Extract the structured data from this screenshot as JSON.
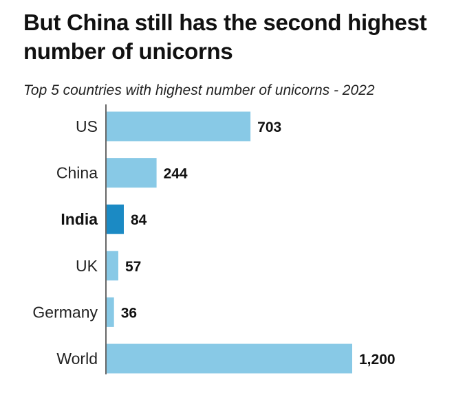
{
  "header": {
    "title": "But China still has the second highest number of unicorns",
    "subtitle": "Top 5 countries with highest number of unicorns - 2022"
  },
  "colors": {
    "bar": "#88c9e6",
    "highlight_bar": "#1b8ac4",
    "axis": "#333333"
  },
  "chart_data": {
    "type": "bar",
    "orientation": "horizontal",
    "title": "But China still has the second highest number of unicorns",
    "subtitle": "Top 5 countries with highest number of unicorns - 2022",
    "categories": [
      "US",
      "China",
      "India",
      "UK",
      "Germany",
      "World"
    ],
    "values": [
      703,
      244,
      84,
      57,
      36,
      1200
    ],
    "value_labels": [
      "703",
      "244",
      "84",
      "57",
      "36",
      "1,200"
    ],
    "highlight": "India",
    "xlim": [
      0,
      1200
    ],
    "grid": false,
    "legend": "none"
  }
}
